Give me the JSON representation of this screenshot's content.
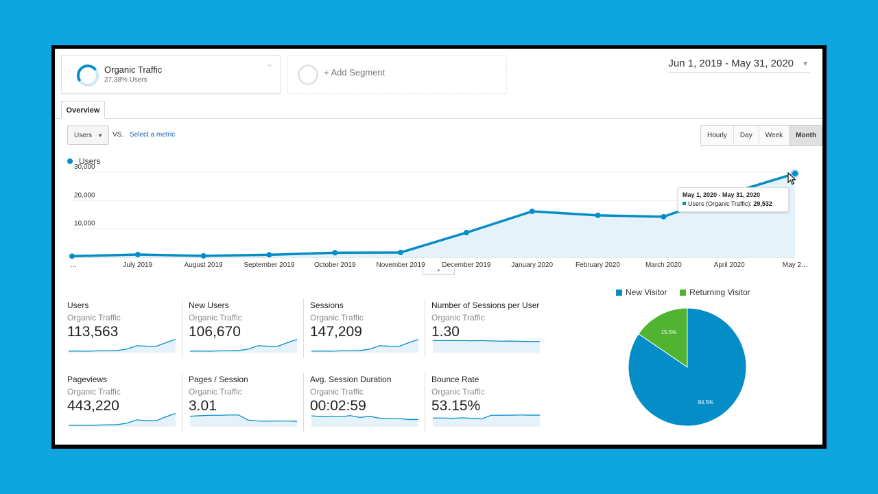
{
  "segments": {
    "active": {
      "title": "Organic Traffic",
      "subtitle": "27.38% Users"
    },
    "add_label": "+ Add Segment"
  },
  "date_range": "Jun 1, 2019 - May 31, 2020",
  "tab": "Overview",
  "metric_selector": {
    "value": "Users",
    "vs": "VS.",
    "select_label": "Select a metric"
  },
  "granularity": [
    "Hourly",
    "Day",
    "Week",
    "Month"
  ],
  "granularity_active": "Month",
  "colors": {
    "accent": "#058dc7",
    "green": "#50b432",
    "link": "#1a5fa8",
    "background": "#0ea5e0"
  },
  "chart_data": [
    {
      "type": "area",
      "series": [
        {
          "name": "Users",
          "values": [
            400,
            960,
            500,
            880,
            1600,
            1700,
            8700,
            16200,
            14800,
            14300,
            22500,
            29532
          ]
        }
      ],
      "categories": [
        "…",
        "July 2019",
        "August 2019",
        "September 2019",
        "October 2019",
        "November 2019",
        "December 2019",
        "January 2020",
        "February 2020",
        "March 2020",
        "April 2020",
        "May 2…"
      ],
      "y_ticks": [
        "10,000",
        "20,000",
        "30,000"
      ],
      "ylim": [
        0,
        30000
      ],
      "grid": true,
      "tooltip": {
        "title": "May 1, 2020 - May 31, 2020",
        "label": "Users (Organic Traffic):",
        "value": "29,532"
      }
    },
    {
      "type": "pie",
      "slices": [
        {
          "name": "New Visitor",
          "value": 84.5,
          "label": "84.5%",
          "color": "#058dc7"
        },
        {
          "name": "Returning Visitor",
          "value": 15.5,
          "label": "15.5%",
          "color": "#50b432"
        }
      ]
    }
  ],
  "cards": [
    {
      "title": "Users",
      "segment": "Organic Traffic",
      "value": "113,563",
      "spark": [
        1,
        1.1,
        1,
        1.2,
        1.3,
        1.4,
        2.4,
        4.6,
        4.3,
        4.2,
        6.6,
        8.8
      ]
    },
    {
      "title": "New Users",
      "segment": "Organic Traffic",
      "value": "106,670",
      "spark": [
        1,
        1.1,
        1,
        1.2,
        1.3,
        1.4,
        2.4,
        4.6,
        4.3,
        4.2,
        6.6,
        8.8
      ]
    },
    {
      "title": "Sessions",
      "segment": "Organic Traffic",
      "value": "147,209",
      "spark": [
        1,
        1.1,
        1,
        1.2,
        1.3,
        1.4,
        2.4,
        4.6,
        4.3,
        4.2,
        6.6,
        8.8
      ]
    },
    {
      "title": "Number of Sessions per User",
      "segment": "Organic Traffic",
      "value": "1.30",
      "spark": [
        8,
        8,
        8,
        8,
        7.9,
        8,
        7.8,
        7.6,
        7.7,
        7.5,
        7.4,
        7.4
      ]
    },
    {
      "title": "Pageviews",
      "segment": "Organic Traffic",
      "value": "443,220",
      "spark": [
        1,
        1,
        1,
        1.1,
        1.3,
        1.4,
        2.4,
        4.6,
        4,
        4,
        6.6,
        8.8
      ]
    },
    {
      "title": "Pages / Session",
      "segment": "Organic Traffic",
      "value": "3.01",
      "spark": [
        7,
        7.3,
        7.6,
        7.6,
        7.8,
        7.8,
        4.4,
        3.8,
        3.7,
        3.8,
        3.8,
        3.6
      ]
    },
    {
      "title": "Avg. Session Duration",
      "segment": "Organic Traffic",
      "value": "00:02:59",
      "spark": [
        7.2,
        6.8,
        7,
        6.6,
        7.4,
        6.2,
        6.9,
        5.7,
        5.4,
        5.4,
        4.8,
        4.8
      ]
    },
    {
      "title": "Bounce Rate",
      "segment": "Organic Traffic",
      "value": "53.15%",
      "spark": [
        5.8,
        5.8,
        5.6,
        5.9,
        5.6,
        5.2,
        7.6,
        7.6,
        7.7,
        7.8,
        7.7,
        7.7
      ]
    }
  ]
}
